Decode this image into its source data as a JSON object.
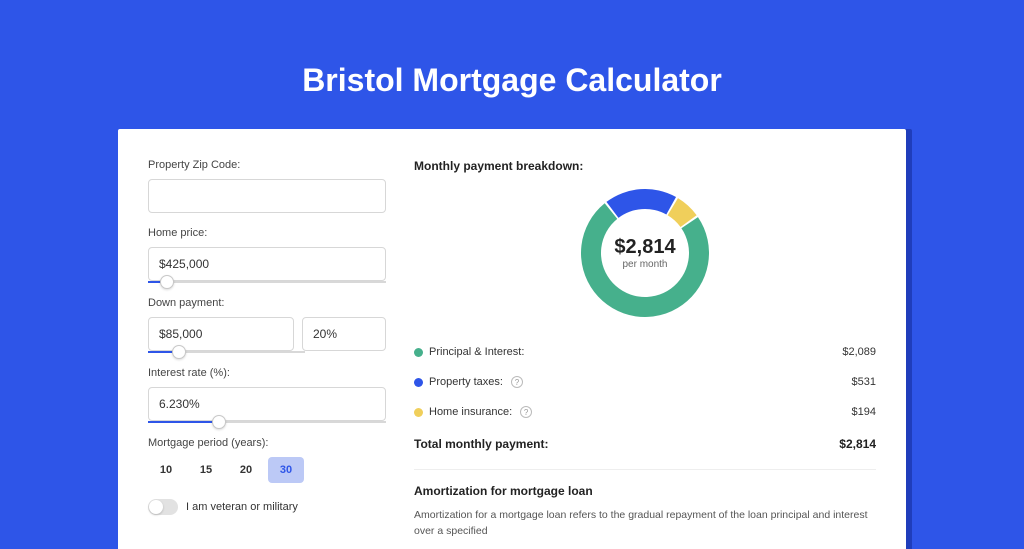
{
  "page": {
    "title": "Bristol Mortgage Calculator",
    "bg_color": "#2e55e8",
    "card_shadow_color": "#1f3dbb"
  },
  "form": {
    "zip": {
      "label": "Property Zip Code:",
      "value": ""
    },
    "home_price": {
      "label": "Home price:",
      "value": "$425,000",
      "slider_pct": 8
    },
    "down_payment": {
      "label": "Down payment:",
      "value": "$85,000",
      "pct_value": "20%",
      "slider_pct": 20
    },
    "interest_rate": {
      "label": "Interest rate (%):",
      "value": "6.230%",
      "slider_pct": 30
    },
    "period": {
      "label": "Mortgage period (years):",
      "options": [
        "10",
        "15",
        "20",
        "30"
      ],
      "selected": "30"
    },
    "veteran": {
      "label": "I am veteran or military",
      "checked": false
    }
  },
  "breakdown": {
    "title": "Monthly payment breakdown:",
    "donut": {
      "amount": "$2,814",
      "sub": "per month",
      "diameter": 128,
      "thickness": 20,
      "slices": [
        {
          "name": "principal_interest",
          "value": 2089,
          "pct": 74.2,
          "color": "#46b08c"
        },
        {
          "name": "property_taxes",
          "value": 531,
          "pct": 18.9,
          "color": "#2e55e8"
        },
        {
          "name": "home_insurance",
          "value": 194,
          "pct": 6.9,
          "color": "#f0cf5b"
        }
      ]
    },
    "legend": [
      {
        "label": "Principal & Interest:",
        "value": "$2,089",
        "color": "#46b08c",
        "info": false
      },
      {
        "label": "Property taxes:",
        "value": "$531",
        "color": "#2e55e8",
        "info": true
      },
      {
        "label": "Home insurance:",
        "value": "$194",
        "color": "#f0cf5b",
        "info": true
      }
    ],
    "total": {
      "label": "Total monthly payment:",
      "value": "$2,814"
    }
  },
  "amortization": {
    "title": "Amortization for mortgage loan",
    "text": "Amortization for a mortgage loan refers to the gradual repayment of the loan principal and interest over a specified"
  }
}
